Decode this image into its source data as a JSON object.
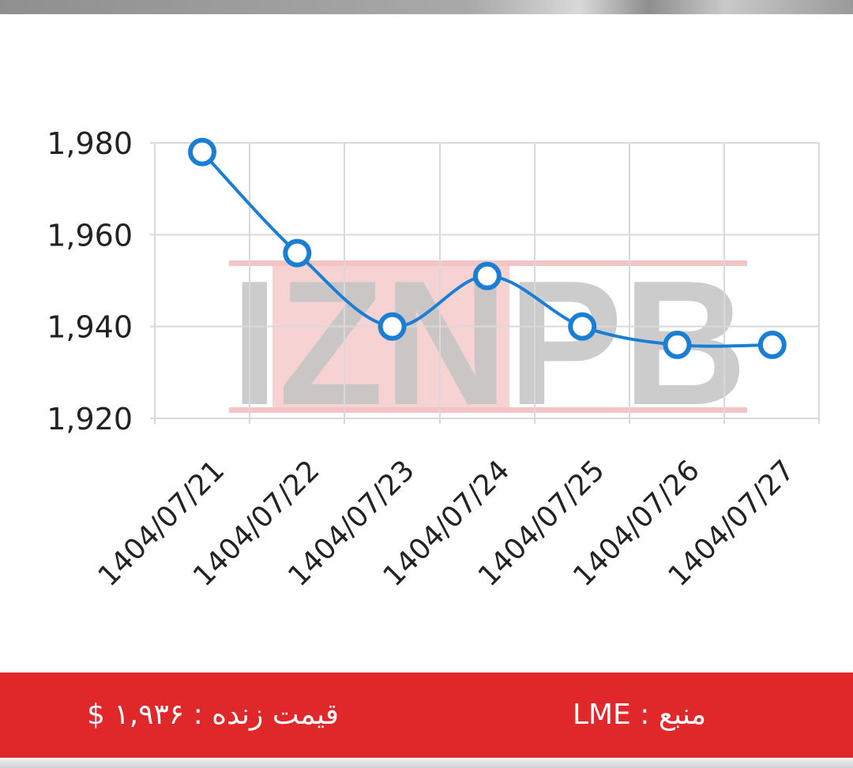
{
  "chart_data": {
    "type": "line",
    "title": "",
    "xlabel": "",
    "ylabel": "",
    "categories": [
      "1404/07/21",
      "1404/07/22",
      "1404/07/23",
      "1404/07/24",
      "1404/07/25",
      "1404/07/26",
      "1404/07/27"
    ],
    "values": [
      1978,
      1956,
      1940,
      1951,
      1940,
      1936,
      1936
    ],
    "ylim": [
      1920,
      1980
    ],
    "yticks": [
      "1,980",
      "1,960",
      "1,940",
      "1,920"
    ],
    "grid": true,
    "line_color": "#1a7fd4",
    "marker": "hollow-circle"
  },
  "watermark": {
    "text": "IZNPB",
    "colors": {
      "gray": "#b8b8b8",
      "red": "#f2c4c4"
    }
  },
  "footer": {
    "price_label": "قیمت زنده : ۱,۹۳۶ $",
    "source_label": "منبع : LME",
    "background": "#e0282b"
  }
}
